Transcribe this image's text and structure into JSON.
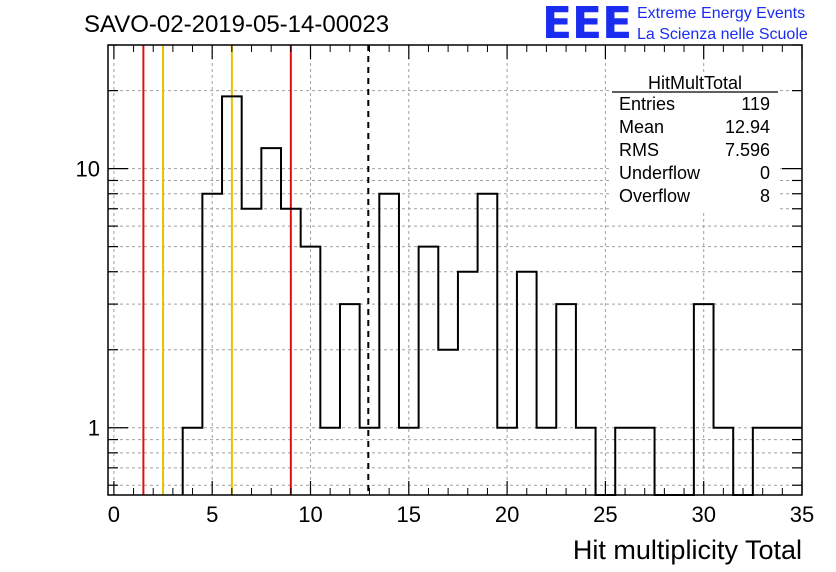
{
  "header": {
    "title": "SAVO-02-2019-05-14-00023",
    "logo_text": "EEE",
    "logo_line1": "Extreme Energy Events",
    "logo_line2": "La Scienza nelle Scuole"
  },
  "stats_box": {
    "title": "HitMultTotal",
    "rows": [
      {
        "label": "Entries",
        "value": "119"
      },
      {
        "label": "Mean",
        "value": "12.94"
      },
      {
        "label": "RMS",
        "value": "7.596"
      },
      {
        "label": "Underflow",
        "value": "0"
      },
      {
        "label": "Overflow",
        "value": "8"
      }
    ]
  },
  "colors": {
    "red_line": "#dd1111",
    "yellow_line": "#e8c000",
    "grid": "#a0a0a0",
    "histogram": "#000000"
  },
  "chart_data": {
    "type": "bar",
    "subtype": "histogram-step",
    "xlabel": "Hit multiplicity Total",
    "ylabel": "",
    "xlim": [
      -0.3,
      35
    ],
    "ylim": [
      0.55,
      30
    ],
    "y_scale": "log",
    "grid": true,
    "x_ticks": [
      0,
      5,
      10,
      15,
      20,
      25,
      30,
      35
    ],
    "y_tick_labels": [
      "1",
      "10"
    ],
    "bin_edges": [
      3.5,
      4.5,
      5.5,
      6.5,
      7.5,
      8.5,
      9.5,
      10.5,
      11.5,
      12.5,
      13.5,
      14.5,
      15.5,
      16.5,
      17.5,
      18.5,
      19.5,
      20.5,
      21.5,
      22.5,
      23.5,
      24.5,
      25.5,
      26.5,
      27.5,
      28.5,
      29.5,
      30.5,
      31.5,
      32.5,
      33.5,
      34.5,
      35.0
    ],
    "counts": [
      1,
      8,
      19,
      7,
      12,
      7,
      5,
      1,
      3,
      1,
      8,
      1,
      5,
      2,
      4,
      8,
      1,
      4,
      1,
      3,
      1,
      0,
      1,
      1,
      0,
      0,
      3,
      1,
      0,
      1,
      1,
      1
    ],
    "vertical_lines": [
      {
        "x": 1.5,
        "color": "red"
      },
      {
        "x": 9.0,
        "color": "red"
      },
      {
        "x": 2.5,
        "color": "yellow"
      },
      {
        "x": 6.0,
        "color": "yellow"
      },
      {
        "x": 12.94,
        "color": "black",
        "style": "dashed"
      }
    ]
  }
}
